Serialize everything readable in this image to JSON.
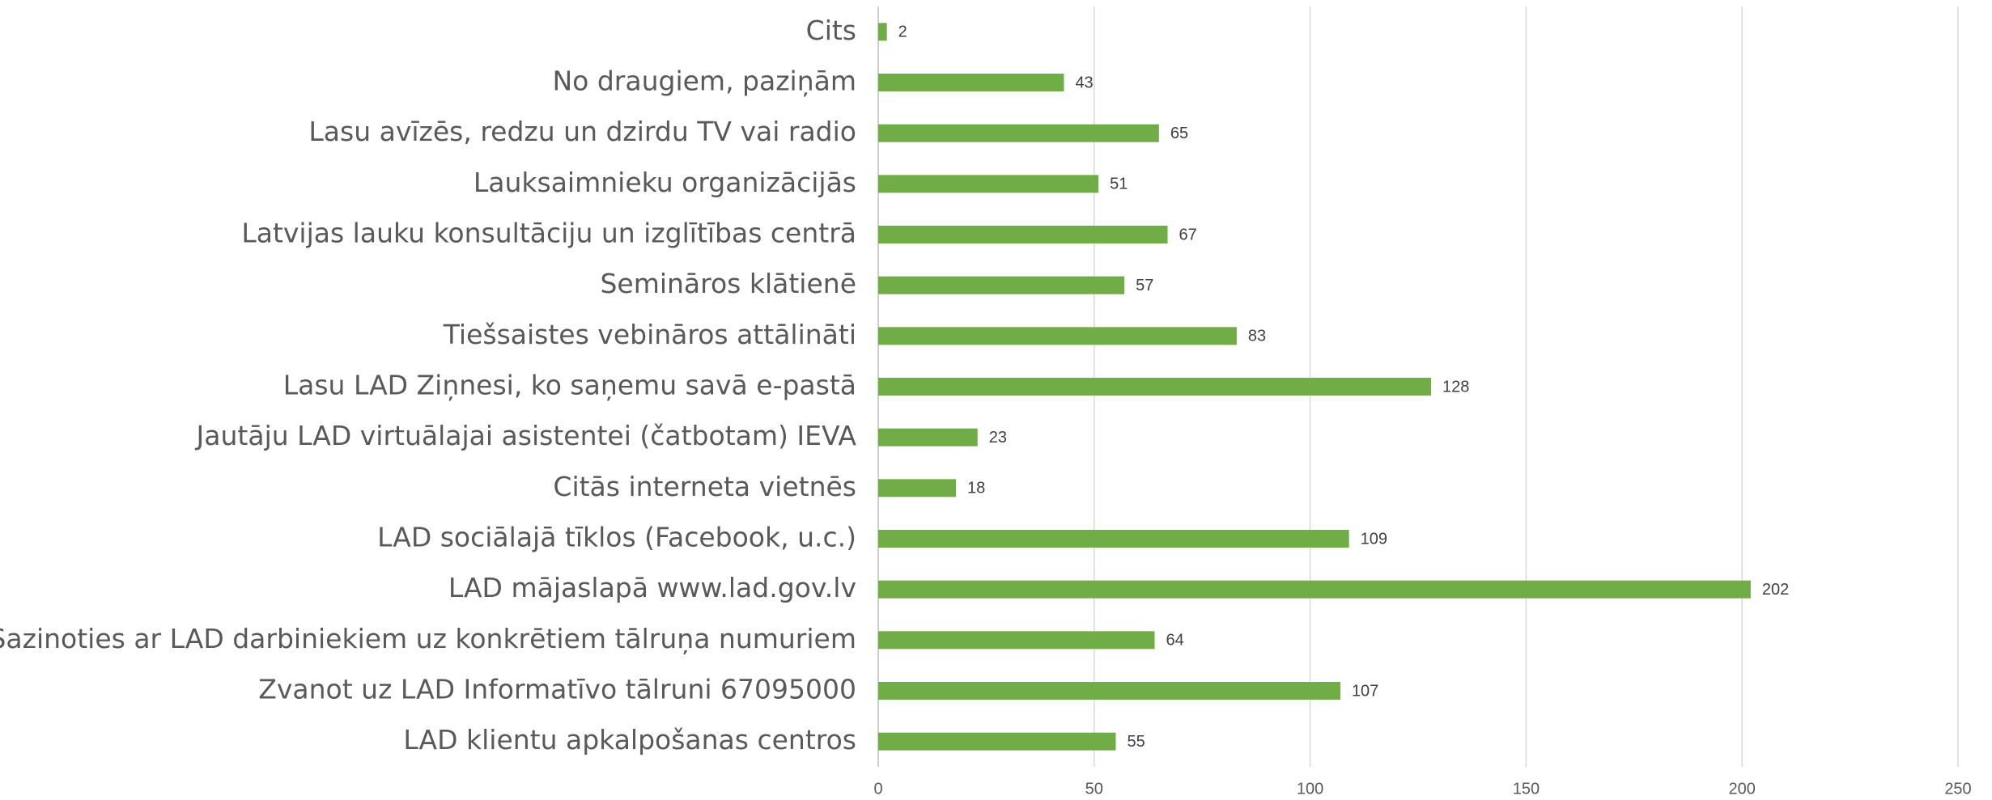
{
  "chart_data": {
    "type": "bar",
    "orientation": "horizontal",
    "categories": [
      "Cits",
      "No draugiem, paziņām",
      "Lasu avīzēs, redzu un dzirdu TV vai radio",
      "Lauksaimnieku organizācijās",
      "Latvijas lauku konsultāciju un izglītības centrā",
      "Semināros klātienē",
      "Tiešsaistes vebināros attālināti",
      "Lasu LAD Ziņnesi, ko saņemu savā e-pastā",
      "Jautāju LAD virtuālajai asistentei (čatbotam) IEVA",
      "Citās interneta vietnēs",
      "LAD sociālajā tīklos (Facebook, u.c.)",
      "LAD mājaslapā www.lad.gov.lv",
      "Sazinoties ar LAD darbiniekiem uz konkrētiem tālruņa numuriem",
      "Zvanot uz LAD Informatīvo tālruni 67095000",
      "LAD klientu apkalpošanas centros"
    ],
    "values": [
      2,
      43,
      65,
      51,
      67,
      57,
      83,
      128,
      23,
      18,
      109,
      202,
      64,
      107,
      55
    ],
    "color": "#70ad47",
    "xlim": [
      0,
      250
    ],
    "xticks": [
      0,
      50,
      100,
      150,
      200,
      250
    ],
    "grid": true
  }
}
